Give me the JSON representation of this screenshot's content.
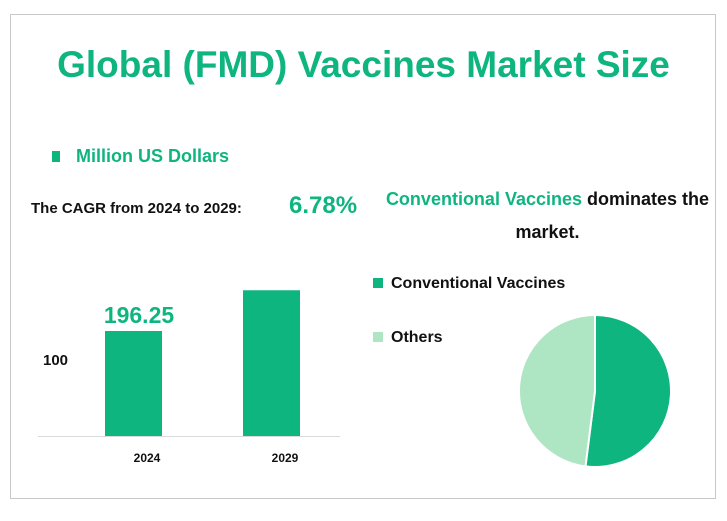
{
  "title": "Global (FMD) Vaccines Market Size",
  "unit_label": "Million US Dollars",
  "cagr_label": "The CAGR from 2024 to 2029:",
  "cagr_value": "6.78%",
  "dominance": {
    "highlight": "Conventional Vaccines",
    "rest": " dominates the market."
  },
  "colors": {
    "primary": "#0fb57f",
    "light": "#aee5c3"
  },
  "chart_data": [
    {
      "type": "bar",
      "categories": [
        "2024",
        "2029"
      ],
      "values": [
        196.25,
        272.4
      ],
      "data_labels": [
        "196.25",
        ""
      ],
      "ytick_labels": [
        "100"
      ],
      "yticks": [
        100
      ],
      "ylim": [
        0,
        300
      ]
    },
    {
      "type": "pie",
      "labels": [
        "Conventional Vaccines",
        "Others"
      ],
      "values": [
        52,
        48
      ],
      "colors": [
        "#0fb57f",
        "#aee5c3"
      ]
    }
  ]
}
